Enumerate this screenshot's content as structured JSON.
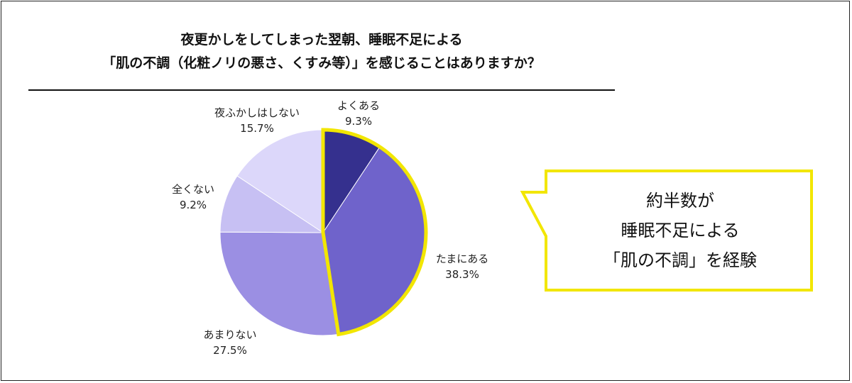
{
  "title_lines": [
    "夜更かしをしてしまった翌朝、睡眠不足による",
    "「肌の不調（化粧ノリの悪さ、くすみ等）」を感じることはありますか？"
  ],
  "chart_data": {
    "type": "pie",
    "start_angle_deg": 0,
    "direction": "clockwise",
    "unit": "%",
    "slices": [
      {
        "label": "よくある",
        "value": 9.3,
        "value_text": "9.3%",
        "color": "#35308e"
      },
      {
        "label": "たまにある",
        "value": 38.3,
        "value_text": "38.3%",
        "color": "#6f63cb"
      },
      {
        "label": "あまりない",
        "value": 27.5,
        "value_text": "27.5%",
        "color": "#9b8fe3"
      },
      {
        "label": "全くない",
        "value": 9.2,
        "value_text": "9.2%",
        "color": "#c7c0f3"
      },
      {
        "label": "夜ふかしはしない",
        "value": 15.7,
        "value_text": "15.7%",
        "color": "#dcd7fa"
      }
    ],
    "highlight_slices": [
      "よくある",
      "たまにある"
    ],
    "highlight_color": "#f2e600"
  },
  "callout": {
    "lines": [
      "約半数が",
      "睡眠不足による",
      "「肌の不調」を経験"
    ],
    "border_color": "#f2e600"
  }
}
